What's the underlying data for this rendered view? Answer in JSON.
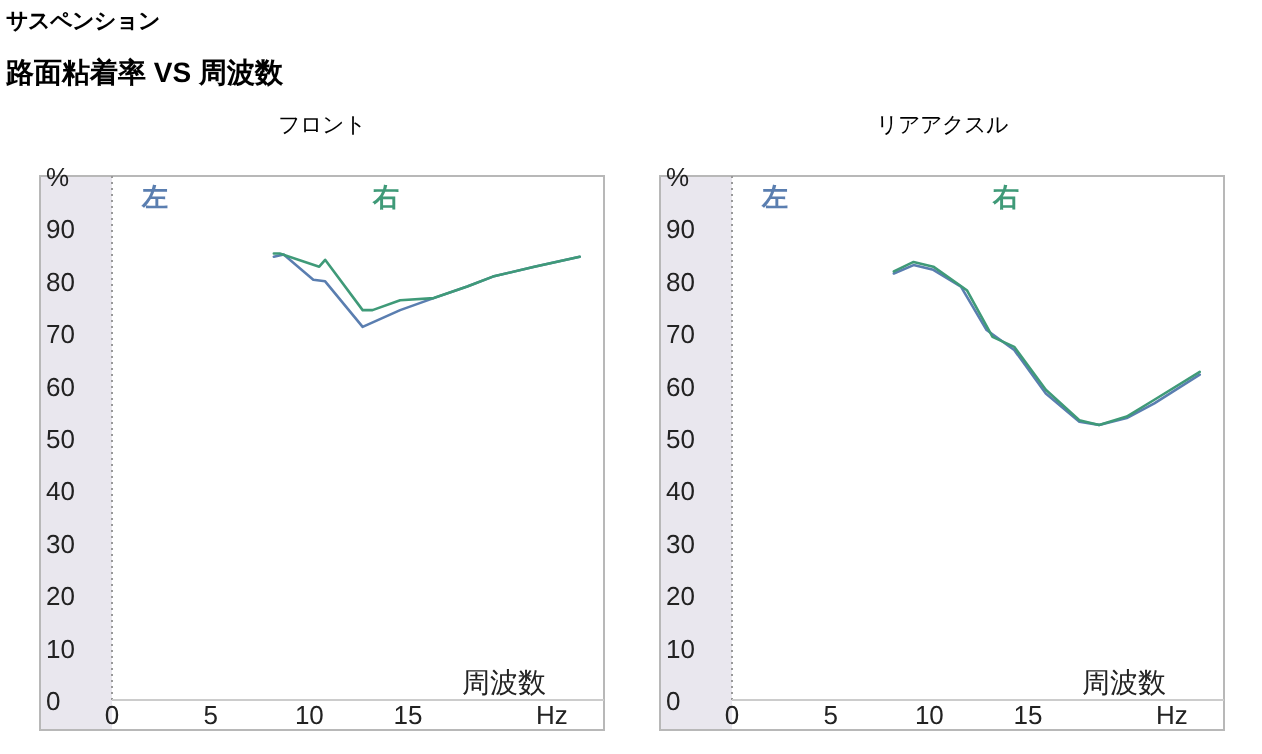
{
  "chart_data": [
    {
      "type": "line",
      "title": "フロント",
      "annotations": [
        "サスペンション",
        "路面粘着率 VS 周波数",
        "Hz"
      ],
      "xlabel": "周波数",
      "legend": "top",
      "xlim": [
        0,
        25
      ],
      "ylim": [
        0,
        100
      ],
      "xticks": [
        0,
        5,
        10,
        15
      ],
      "yticks": [
        0,
        10,
        20,
        30,
        40,
        50,
        60,
        70,
        80,
        90,
        {
          "value": 100,
          "label": "%"
        }
      ],
      "series": [
        {
          "name": "左",
          "color": "#5a7eb0",
          "x": [
            8.2,
            8.7,
            10.2,
            10.8,
            12.7,
            14.6,
            16.3,
            18,
            19.3,
            21.4,
            23.7
          ],
          "values": [
            84.6,
            85,
            80.2,
            79.9,
            71.2,
            74.4,
            76.7,
            78.9,
            80.8,
            82.7,
            84.6
          ]
        },
        {
          "name": "右",
          "color": "#3f9a78",
          "x": [
            8.2,
            8.5,
            10.5,
            10.8,
            12.7,
            13.2,
            14.6,
            16.3,
            18,
            19.3,
            21.4,
            23.7
          ],
          "values": [
            85.2,
            85.2,
            82.7,
            84,
            74.4,
            74.4,
            76.3,
            76.7,
            78.9,
            80.8,
            82.7,
            84.6
          ]
        }
      ]
    },
    {
      "type": "line",
      "title": "リアアクスル",
      "annotations": [
        "Hz"
      ],
      "xlabel": "周波数",
      "legend": "top",
      "xlim": [
        0,
        25
      ],
      "ylim": [
        0,
        100
      ],
      "xticks": [
        0,
        5,
        10,
        15
      ],
      "yticks": [
        0,
        10,
        20,
        30,
        40,
        50,
        60,
        70,
        80,
        90,
        {
          "value": 100,
          "label": "%"
        }
      ],
      "series": [
        {
          "name": "左",
          "color": "#5a7eb0",
          "x": [
            8.2,
            9.2,
            10.2,
            11.6,
            12.9,
            14.3,
            15.9,
            17.6,
            18.6,
            20,
            21.4,
            23.7
          ],
          "values": [
            81.4,
            83,
            82.1,
            78.9,
            70.6,
            66.8,
            58.5,
            53.1,
            52.5,
            53.8,
            56.6,
            62.1
          ]
        },
        {
          "name": "右",
          "color": "#3f9a78",
          "x": [
            8.2,
            9.2,
            10.2,
            11.9,
            13.2,
            14.3,
            15.9,
            17.6,
            18.6,
            20,
            21.4,
            23.7
          ],
          "values": [
            81.8,
            83.6,
            82.7,
            78.2,
            69.3,
            67.4,
            59.2,
            53.4,
            52.5,
            54.1,
            57.3,
            62.6
          ]
        }
      ]
    }
  ]
}
